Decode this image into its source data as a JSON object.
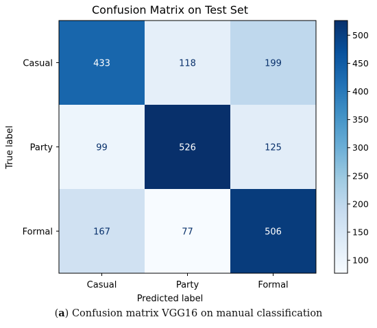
{
  "chart_data": {
    "type": "heatmap",
    "title": "Confusion Matrix on Test Set",
    "xlabel": "Predicted label",
    "ylabel": "True label",
    "x_categories": [
      "Casual",
      "Party",
      "Formal"
    ],
    "y_categories": [
      "Casual",
      "Party",
      "Formal"
    ],
    "values": [
      [
        433,
        118,
        199
      ],
      [
        99,
        526,
        125
      ],
      [
        167,
        77,
        506
      ]
    ],
    "colormap": "Blues",
    "colorbar": {
      "range": [
        77,
        526
      ],
      "ticks": [
        100,
        150,
        200,
        250,
        300,
        350,
        400,
        450,
        500
      ]
    },
    "grid": false,
    "legend": "none"
  },
  "caption": {
    "label": "a",
    "text": "Confusion matrix VGG16 on manual classification"
  }
}
